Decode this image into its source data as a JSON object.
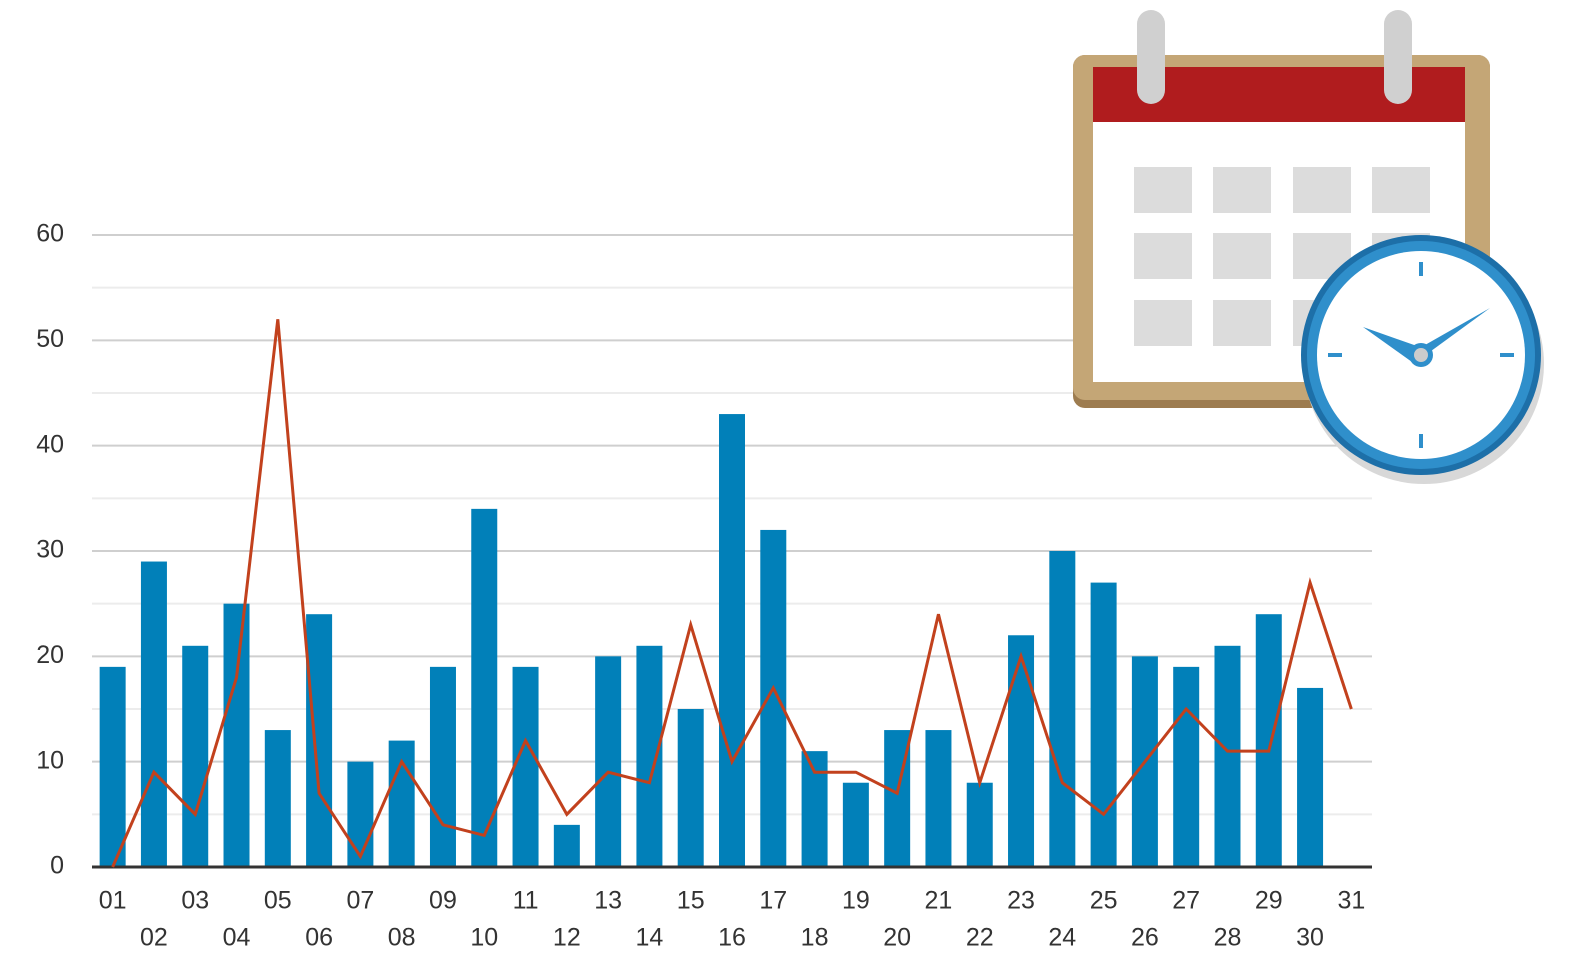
{
  "chart_data": {
    "type": "bar",
    "categories": [
      "01",
      "02",
      "03",
      "04",
      "05",
      "06",
      "07",
      "08",
      "09",
      "10",
      "11",
      "12",
      "13",
      "14",
      "15",
      "16",
      "17",
      "18",
      "19",
      "20",
      "21",
      "22",
      "23",
      "24",
      "25",
      "26",
      "27",
      "28",
      "29",
      "30",
      "31"
    ],
    "series": [
      {
        "type": "bar",
        "color": "#0180b9",
        "values": [
          19,
          29,
          21,
          25,
          13,
          24,
          10,
          12,
          19,
          34,
          19,
          4,
          20,
          21,
          15,
          43,
          32,
          11,
          8,
          13,
          13,
          8,
          22,
          30,
          27,
          20,
          19,
          21,
          24,
          17,
          null
        ]
      },
      {
        "type": "line",
        "color": "#c2411d",
        "values": [
          0,
          9,
          5,
          18,
          52,
          7,
          1,
          10,
          4,
          3,
          12,
          5,
          9,
          8,
          23,
          10,
          17,
          9,
          9,
          7,
          24,
          8,
          20,
          8,
          5,
          10,
          15,
          11,
          11,
          27,
          15
        ]
      }
    ],
    "ylim": [
      0,
      60
    ],
    "yticks": [
      0,
      10,
      20,
      30,
      40,
      50,
      60
    ],
    "grid": true,
    "minor_grid": true
  }
}
